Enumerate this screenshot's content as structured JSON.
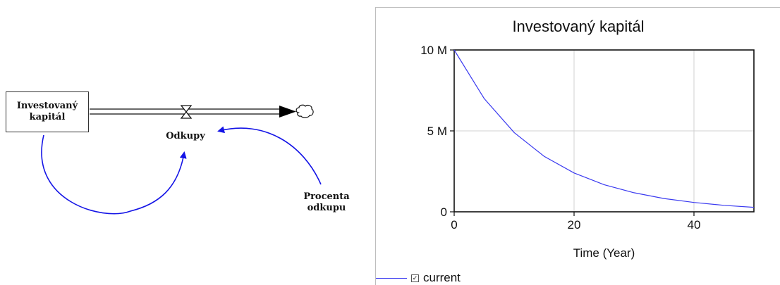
{
  "diagram": {
    "stock_label": "Investovaný kapitál",
    "flow_label": "Odkupy",
    "aux_label": "Procenta odkupu",
    "link_color": "#1414e6"
  },
  "chart_data": {
    "type": "line",
    "title": "Investovaný kapitál",
    "xlabel": "Time (Year)",
    "ylabel": "",
    "xlim": [
      0,
      50
    ],
    "ylim": [
      0,
      10000000
    ],
    "x_ticks": [
      "0",
      "20",
      "40"
    ],
    "x_tick_values": [
      0,
      20,
      40
    ],
    "y_ticks": [
      "0",
      "5 M",
      "10 M"
    ],
    "y_tick_values": [
      0,
      5000000,
      10000000
    ],
    "grid": true,
    "legend": "bottom-left",
    "series": [
      {
        "name": "current",
        "color": "#3a3af0",
        "x": [
          0,
          5,
          10,
          15,
          20,
          25,
          30,
          35,
          40,
          45,
          50
        ],
        "values": [
          10000000,
          7000000,
          4900000,
          3430000,
          2400000,
          1680000,
          1180000,
          820000,
          580000,
          400000,
          280000
        ]
      }
    ]
  }
}
